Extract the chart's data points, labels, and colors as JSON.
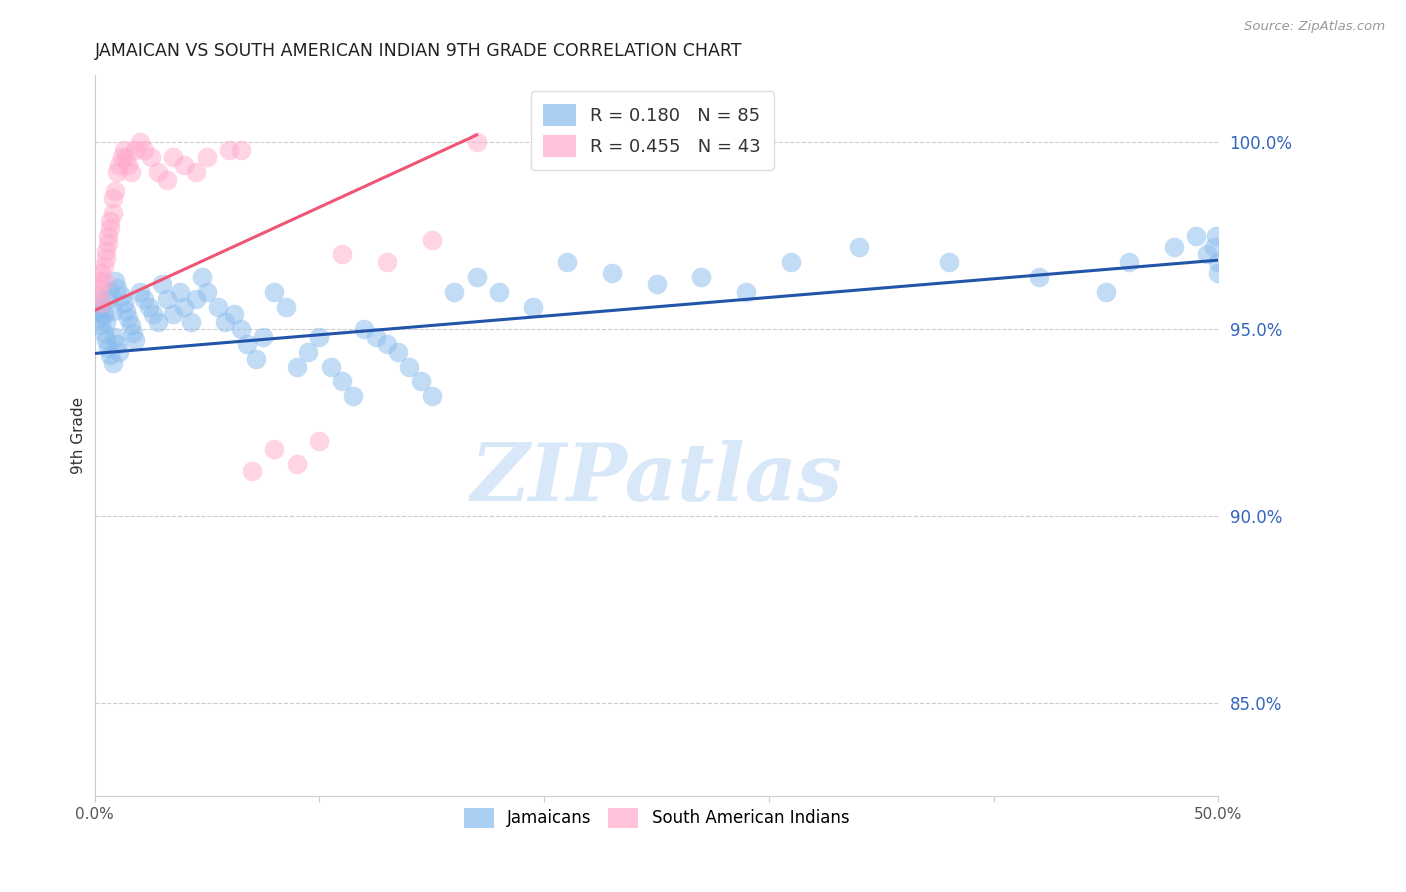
{
  "title": "JAMAICAN VS SOUTH AMERICAN INDIAN 9TH GRADE CORRELATION CHART",
  "source": "Source: ZipAtlas.com",
  "ylabel": "9th Grade",
  "ylabel_right_ticks": [
    85.0,
    90.0,
    95.0,
    100.0
  ],
  "xmin": 0.0,
  "xmax": 0.5,
  "ymin": 0.825,
  "ymax": 1.018,
  "legend_blue_r": "0.180",
  "legend_blue_n": "85",
  "legend_pink_r": "0.455",
  "legend_pink_n": "43",
  "legend_label_blue": "Jamaicans",
  "legend_label_pink": "South American Indians",
  "blue_color": "#88BBEE",
  "pink_color": "#FFAACC",
  "line_blue_color": "#2255AA",
  "line_pink_color": "#EE5577",
  "watermark_color": "#D8E8F8",
  "blue_scatter_x": [
    0.001,
    0.002,
    0.002,
    0.003,
    0.003,
    0.004,
    0.004,
    0.005,
    0.005,
    0.006,
    0.006,
    0.007,
    0.007,
    0.008,
    0.008,
    0.009,
    0.009,
    0.01,
    0.01,
    0.011,
    0.012,
    0.013,
    0.014,
    0.015,
    0.016,
    0.017,
    0.018,
    0.02,
    0.022,
    0.024,
    0.026,
    0.028,
    0.03,
    0.032,
    0.035,
    0.038,
    0.04,
    0.043,
    0.045,
    0.048,
    0.05,
    0.055,
    0.058,
    0.062,
    0.065,
    0.068,
    0.072,
    0.075,
    0.08,
    0.085,
    0.09,
    0.095,
    0.1,
    0.105,
    0.11,
    0.115,
    0.12,
    0.125,
    0.13,
    0.135,
    0.14,
    0.145,
    0.15,
    0.16,
    0.17,
    0.18,
    0.195,
    0.21,
    0.23,
    0.25,
    0.27,
    0.29,
    0.31,
    0.34,
    0.38,
    0.42,
    0.45,
    0.46,
    0.48,
    0.49,
    0.495,
    0.498,
    0.499,
    0.5,
    0.5
  ],
  "blue_scatter_y": [
    0.955,
    0.953,
    0.958,
    0.951,
    0.956,
    0.949,
    0.954,
    0.947,
    0.952,
    0.945,
    0.958,
    0.943,
    0.96,
    0.941,
    0.955,
    0.948,
    0.963,
    0.946,
    0.961,
    0.944,
    0.959,
    0.957,
    0.955,
    0.953,
    0.951,
    0.949,
    0.947,
    0.96,
    0.958,
    0.956,
    0.954,
    0.952,
    0.962,
    0.958,
    0.954,
    0.96,
    0.956,
    0.952,
    0.958,
    0.964,
    0.96,
    0.956,
    0.952,
    0.954,
    0.95,
    0.946,
    0.942,
    0.948,
    0.96,
    0.956,
    0.94,
    0.944,
    0.948,
    0.94,
    0.936,
    0.932,
    0.95,
    0.948,
    0.946,
    0.944,
    0.94,
    0.936,
    0.932,
    0.96,
    0.964,
    0.96,
    0.956,
    0.968,
    0.965,
    0.962,
    0.964,
    0.96,
    0.968,
    0.972,
    0.968,
    0.964,
    0.96,
    0.968,
    0.972,
    0.975,
    0.97,
    0.972,
    0.975,
    0.968,
    0.965
  ],
  "pink_scatter_x": [
    0.001,
    0.002,
    0.002,
    0.003,
    0.003,
    0.004,
    0.004,
    0.005,
    0.005,
    0.006,
    0.006,
    0.007,
    0.007,
    0.008,
    0.008,
    0.009,
    0.01,
    0.011,
    0.012,
    0.013,
    0.014,
    0.015,
    0.016,
    0.018,
    0.02,
    0.022,
    0.025,
    0.028,
    0.032,
    0.035,
    0.04,
    0.045,
    0.05,
    0.06,
    0.065,
    0.07,
    0.08,
    0.09,
    0.1,
    0.11,
    0.13,
    0.15,
    0.17
  ],
  "pink_scatter_y": [
    0.961,
    0.959,
    0.963,
    0.957,
    0.965,
    0.963,
    0.967,
    0.969,
    0.971,
    0.973,
    0.975,
    0.977,
    0.979,
    0.981,
    0.985,
    0.987,
    0.992,
    0.994,
    0.996,
    0.998,
    0.996,
    0.994,
    0.992,
    0.998,
    1.0,
    0.998,
    0.996,
    0.992,
    0.99,
    0.996,
    0.994,
    0.992,
    0.996,
    0.998,
    0.998,
    0.912,
    0.918,
    0.914,
    0.92,
    0.97,
    0.968,
    0.974,
    1.0
  ],
  "blue_line_x": [
    0.0,
    0.5
  ],
  "blue_line_y": [
    0.9435,
    0.9685
  ],
  "pink_line_x": [
    0.0,
    0.17
  ],
  "pink_line_y": [
    0.955,
    1.002
  ]
}
